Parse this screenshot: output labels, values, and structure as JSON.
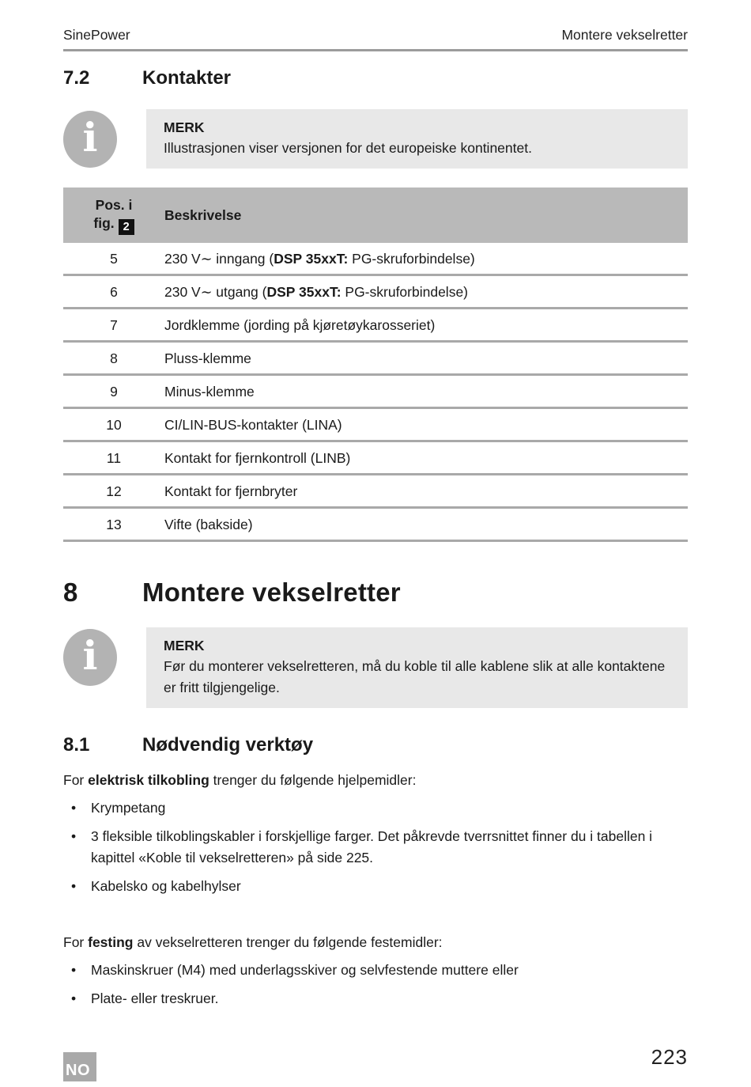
{
  "header": {
    "left": "SinePower",
    "right": "Montere vekselretter"
  },
  "footer": {
    "lang_badge": "NO",
    "page_number": "223"
  },
  "colors": {
    "note_background": "#e8e8e8",
    "table_header_background": "#b9b9b9",
    "row_divider": "#a9a9a9",
    "icon_gray": "#b3b3b3",
    "badge_background": "#a9a9a9",
    "rule_gray": "#9c9c9c"
  },
  "section_7_2": {
    "number": "7.2",
    "title": "Kontakter",
    "note": {
      "icon": "info-icon",
      "icon_glyph": "i",
      "label": "MERK",
      "text": "Illustrasjonen viser versjonen for det europeiske kontinentet."
    }
  },
  "table": {
    "header": {
      "col1_line1": "Pos. i",
      "col1_line2": "fig.",
      "fig_ref": "2",
      "col2": "Beskrivelse"
    },
    "rows": [
      {
        "pos": "5",
        "desc_pre": "230 V∼ inngang (",
        "desc_bold": "DSP 35xxT:",
        "desc_post": " PG-skruforbindelse)"
      },
      {
        "pos": "6",
        "desc_pre": "230 V∼ utgang (",
        "desc_bold": "DSP 35xxT:",
        "desc_post": " PG-skruforbindelse)"
      },
      {
        "pos": "7",
        "desc_pre": "Jordklemme (jording på kjøretøykarosseriet)",
        "desc_bold": "",
        "desc_post": ""
      },
      {
        "pos": "8",
        "desc_pre": "Pluss-klemme",
        "desc_bold": "",
        "desc_post": ""
      },
      {
        "pos": "9",
        "desc_pre": "Minus-klemme",
        "desc_bold": "",
        "desc_post": ""
      },
      {
        "pos": "10",
        "desc_pre": "CI/LIN-BUS-kontakter (LINA)",
        "desc_bold": "",
        "desc_post": ""
      },
      {
        "pos": "11",
        "desc_pre": "Kontakt for fjernkontroll (LINB)",
        "desc_bold": "",
        "desc_post": ""
      },
      {
        "pos": "12",
        "desc_pre": "Kontakt for fjernbryter",
        "desc_bold": "",
        "desc_post": ""
      },
      {
        "pos": "13",
        "desc_pre": "Vifte (bakside)",
        "desc_bold": "",
        "desc_post": ""
      }
    ]
  },
  "section_8": {
    "number": "8",
    "title": "Montere vekselretter",
    "note": {
      "icon": "info-icon",
      "icon_glyph": "i",
      "label": "MERK",
      "text": "Før du monterer vekselretteren, må du koble til alle kablene slik at alle kontaktene er fritt tilgjengelige."
    }
  },
  "section_8_1": {
    "number": "8.1",
    "title": "Nødvendig verktøy",
    "intro1": {
      "pre": "For ",
      "bold": "elektrisk tilkobling",
      "post": " trenger du følgende hjelpemidler:"
    },
    "bullets1": [
      "Krympetang",
      "3 fleksible tilkoblingskabler i forskjellige farger. Det påkrevde tverrsnittet finner du i tabellen i kapittel «Koble til vekselretteren» på side 225.",
      "Kabelsko og kabelhylser"
    ],
    "intro2": {
      "pre": "For ",
      "bold": "festing",
      "post": " av vekselretteren trenger du følgende festemidler:"
    },
    "bullets2": [
      "Maskinskruer (M4) med underlagsskiver og selvfestende muttere eller",
      "Plate- eller treskruer."
    ]
  }
}
